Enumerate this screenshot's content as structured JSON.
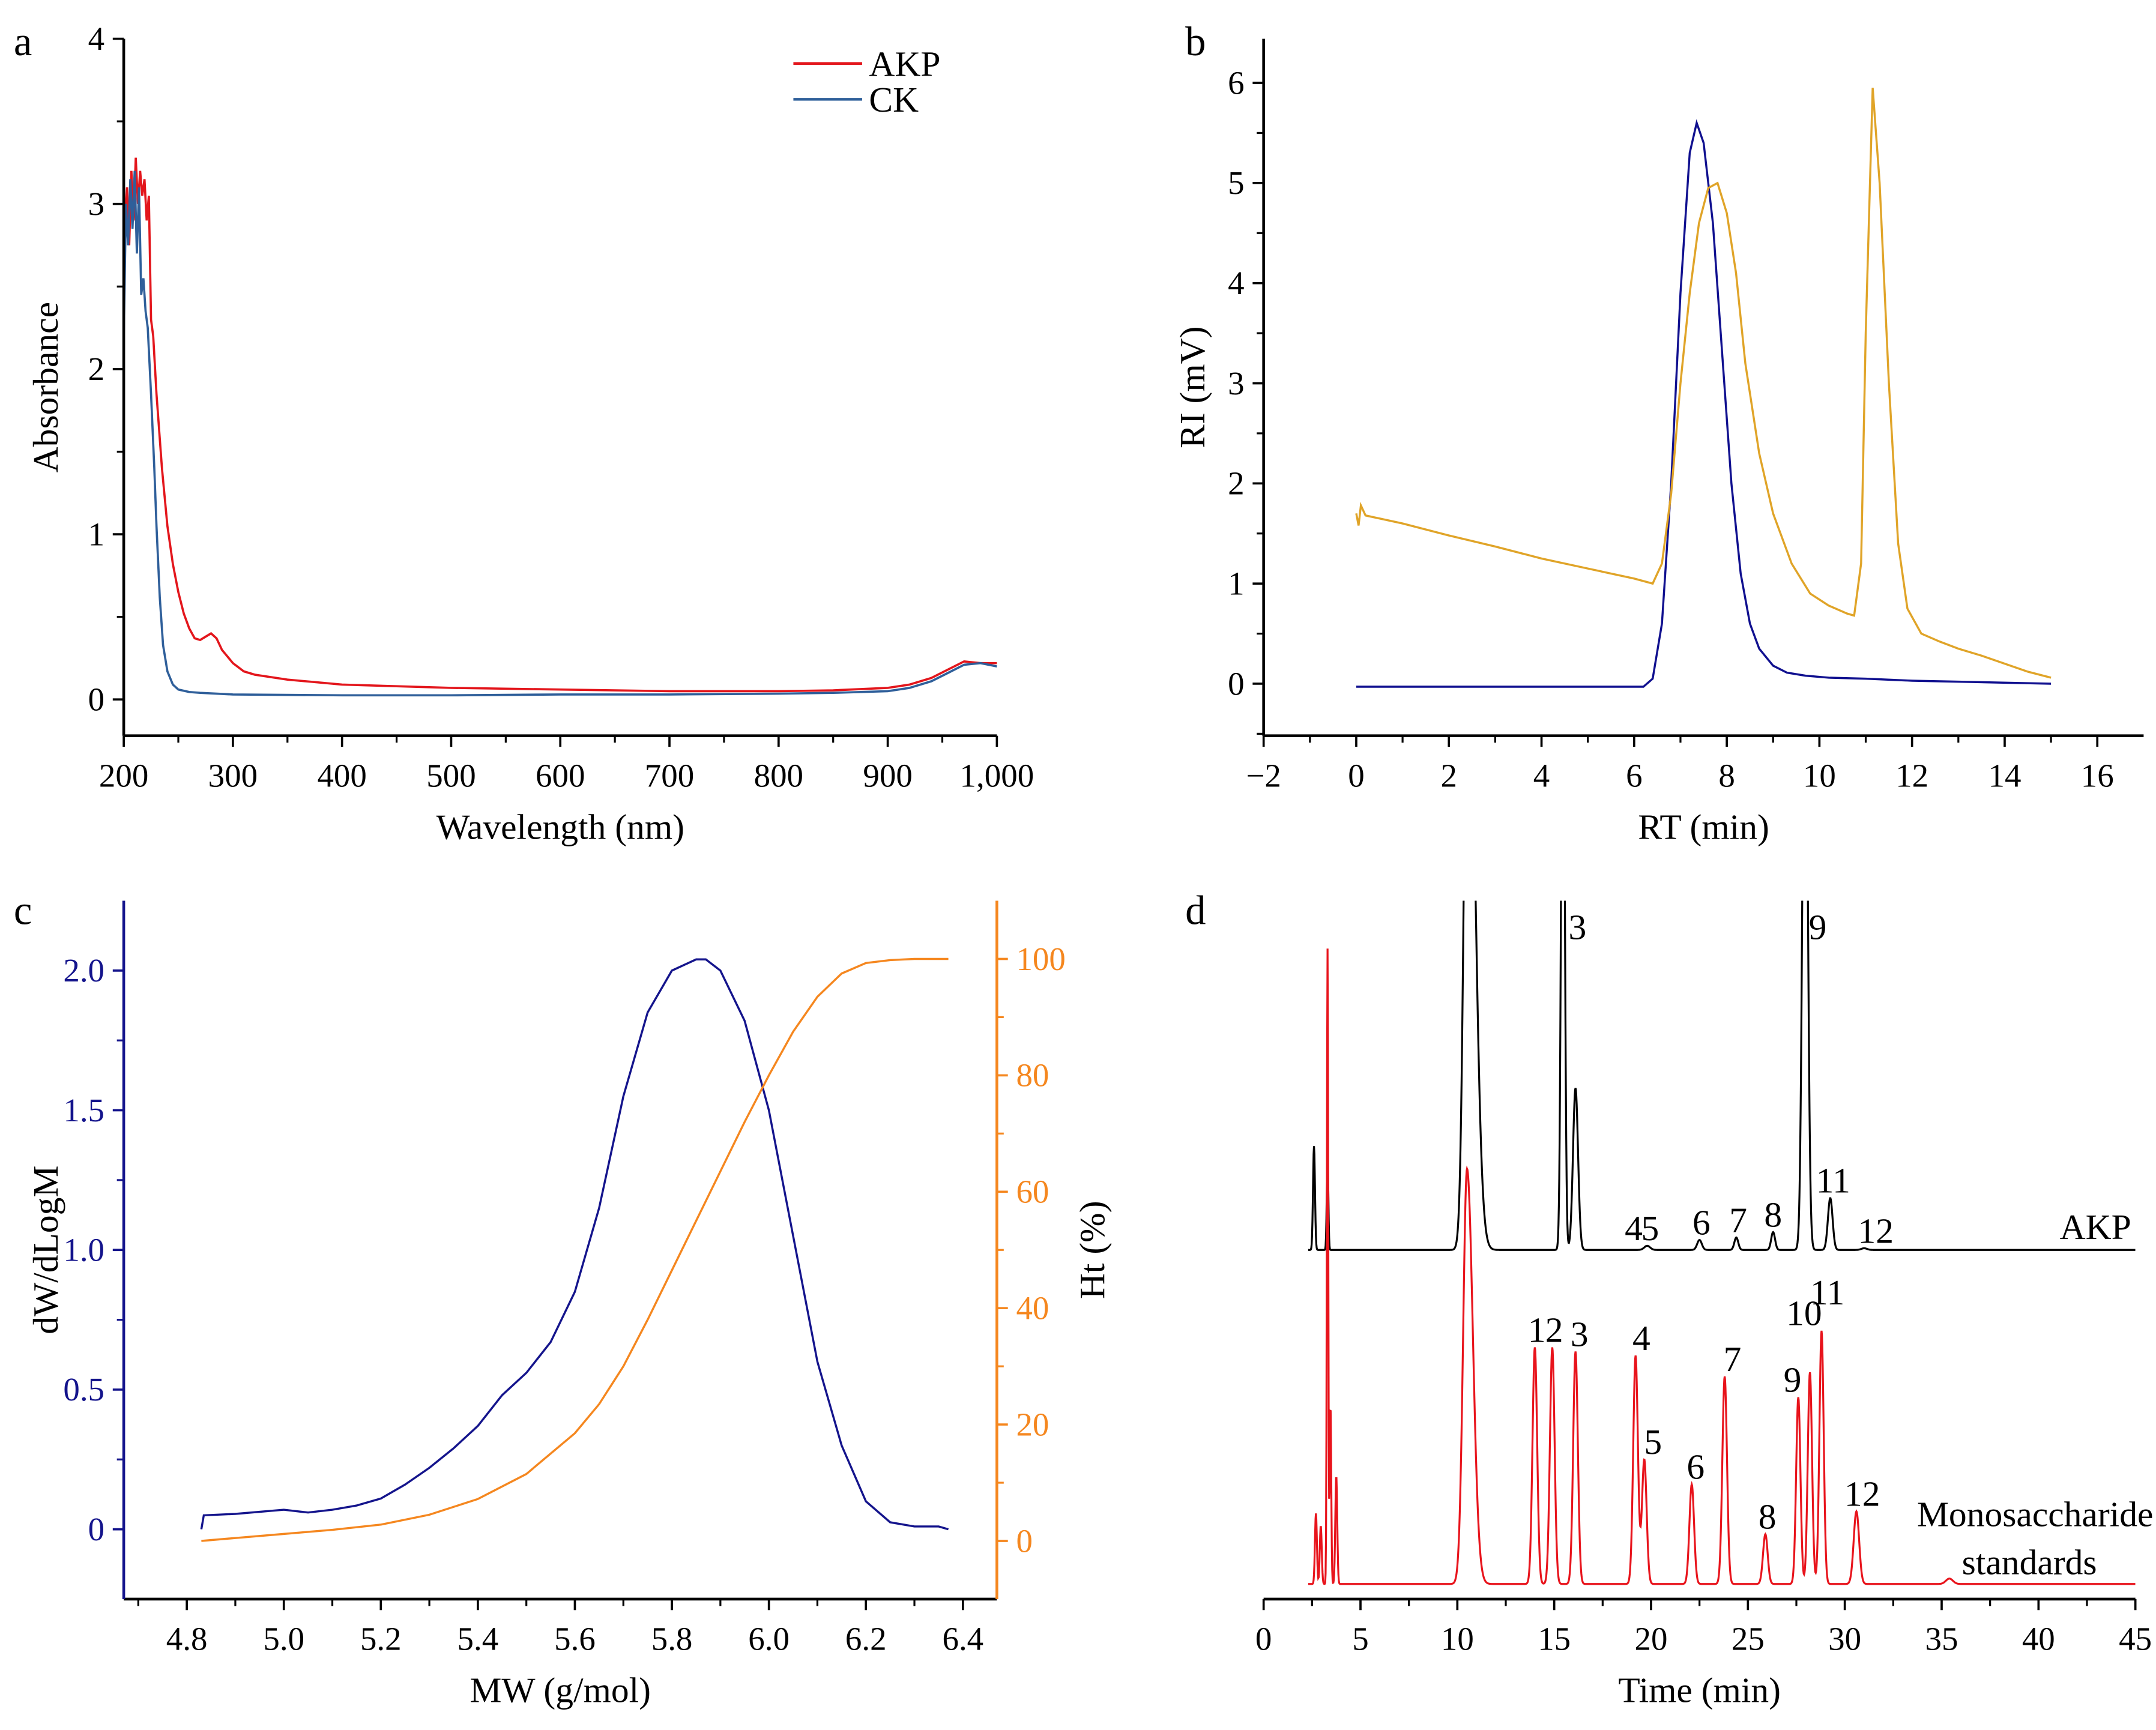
{
  "panels": [
    "a",
    "b",
    "c",
    "d"
  ],
  "chart_data": [
    {
      "panel": "a",
      "type": "line",
      "xlabel": "Wavelength (nm)",
      "ylabel": "Absorbance",
      "xlim": [
        200,
        1000
      ],
      "ylim": [
        -0.22,
        4
      ],
      "xticks": [
        200,
        300,
        400,
        500,
        600,
        700,
        800,
        900,
        1000
      ],
      "xtick_labels": [
        "200",
        "300",
        "400",
        "500",
        "600",
        "700",
        "800",
        "900",
        "1,000"
      ],
      "yticks": [
        0,
        1,
        2,
        3,
        4
      ],
      "ytick_labels": [
        "0",
        "1",
        "2",
        "3",
        "4"
      ],
      "legend": "top-right",
      "grid": false,
      "series": [
        {
          "name": "AKP",
          "color": "#e3161c",
          "x": [
            200,
            203,
            205,
            207,
            209,
            211,
            213,
            215,
            217,
            219,
            221,
            223,
            225,
            227,
            230,
            235,
            240,
            245,
            250,
            255,
            260,
            265,
            270,
            275,
            280,
            285,
            290,
            300,
            310,
            320,
            350,
            400,
            450,
            500,
            600,
            700,
            800,
            850,
            900,
            920,
            940,
            955,
            970,
            985,
            1000
          ],
          "y": [
            2.8,
            3.1,
            2.75,
            3.2,
            2.9,
            3.28,
            3.0,
            3.2,
            3.05,
            3.15,
            2.9,
            3.05,
            2.3,
            2.2,
            1.85,
            1.4,
            1.05,
            0.82,
            0.65,
            0.52,
            0.43,
            0.37,
            0.36,
            0.38,
            0.4,
            0.37,
            0.3,
            0.22,
            0.17,
            0.15,
            0.12,
            0.09,
            0.08,
            0.07,
            0.06,
            0.05,
            0.05,
            0.055,
            0.07,
            0.09,
            0.13,
            0.18,
            0.23,
            0.22,
            0.22
          ]
        },
        {
          "name": "CK",
          "color": "#2f5f9a",
          "x": [
            200,
            202,
            204,
            206,
            208,
            210,
            212,
            214,
            216,
            218,
            220,
            222,
            225,
            228,
            230,
            233,
            236,
            240,
            245,
            250,
            260,
            270,
            300,
            400,
            500,
            600,
            700,
            800,
            850,
            900,
            920,
            940,
            955,
            970,
            985,
            1000
          ],
          "y": [
            2.2,
            3.0,
            2.75,
            3.15,
            2.85,
            3.2,
            2.7,
            3.1,
            2.45,
            2.55,
            2.35,
            2.25,
            1.85,
            1.4,
            1.05,
            0.62,
            0.33,
            0.17,
            0.09,
            0.06,
            0.045,
            0.04,
            0.03,
            0.025,
            0.025,
            0.03,
            0.03,
            0.035,
            0.04,
            0.05,
            0.07,
            0.11,
            0.16,
            0.21,
            0.22,
            0.2
          ]
        }
      ]
    },
    {
      "panel": "b",
      "type": "line",
      "xlabel": "RT (min)",
      "ylabel": "RI (mV)",
      "xlim": [
        -2,
        17
      ],
      "ylim": [
        -0.52,
        6.44
      ],
      "xticks": [
        -2,
        0,
        2,
        4,
        6,
        8,
        10,
        12,
        14,
        16
      ],
      "xtick_labels": [
        "−2",
        "0",
        "2",
        "4",
        "6",
        "8",
        "10",
        "12",
        "14",
        "16"
      ],
      "yticks": [
        0,
        1,
        2,
        3,
        4,
        5,
        6
      ],
      "ytick_labels": [
        "0",
        "1",
        "2",
        "3",
        "4",
        "5",
        "6"
      ],
      "grid": false,
      "series": [
        {
          "color": "#10108f",
          "x": [
            0,
            3,
            6.2,
            6.4,
            6.6,
            6.8,
            7.0,
            7.2,
            7.35,
            7.5,
            7.7,
            7.9,
            8.1,
            8.3,
            8.5,
            8.7,
            9.0,
            9.3,
            9.7,
            10.2,
            11,
            12,
            13,
            15
          ],
          "y": [
            -0.03,
            -0.03,
            -0.03,
            0.05,
            0.6,
            2.0,
            3.9,
            5.3,
            5.6,
            5.4,
            4.6,
            3.3,
            2.0,
            1.1,
            0.6,
            0.35,
            0.18,
            0.11,
            0.08,
            0.06,
            0.05,
            0.03,
            0.02,
            0.0
          ]
        },
        {
          "color": "#e0a428",
          "x": [
            0,
            0.05,
            0.1,
            0.2,
            0.5,
            1,
            2,
            3,
            4,
            5,
            6,
            6.4,
            6.6,
            6.8,
            7.0,
            7.2,
            7.4,
            7.6,
            7.8,
            8.0,
            8.2,
            8.4,
            8.7,
            9.0,
            9.4,
            9.8,
            10.2,
            10.6,
            10.75,
            10.9,
            11.0,
            11.15,
            11.3,
            11.5,
            11.7,
            11.9,
            12.2,
            12.6,
            13,
            13.5,
            14,
            14.5,
            15
          ],
          "y": [
            1.7,
            1.58,
            1.78,
            1.68,
            1.65,
            1.6,
            1.48,
            1.37,
            1.25,
            1.15,
            1.05,
            1.0,
            1.2,
            1.9,
            3.0,
            3.9,
            4.6,
            4.95,
            5.0,
            4.7,
            4.1,
            3.2,
            2.3,
            1.7,
            1.2,
            0.9,
            0.78,
            0.7,
            0.68,
            1.2,
            3.5,
            5.95,
            5.0,
            3.0,
            1.4,
            0.75,
            0.5,
            0.42,
            0.35,
            0.28,
            0.2,
            0.12,
            0.06
          ]
        }
      ]
    },
    {
      "panel": "c",
      "type": "line",
      "xlabel": "MW (g/mol)",
      "ylabel": "dW/dLogM",
      "y2label": "Ht (%)",
      "xlim": [
        4.67,
        6.47
      ],
      "ylim": [
        -0.25,
        2.25
      ],
      "y2lim": [
        -10,
        110
      ],
      "xticks": [
        4.8,
        5.0,
        5.2,
        5.4,
        5.6,
        5.8,
        6.0,
        6.2,
        6.4
      ],
      "xtick_labels": [
        "4.8",
        "5.0",
        "5.2",
        "5.4",
        "5.6",
        "5.8",
        "6.0",
        "6.2",
        "6.4"
      ],
      "yticks": [
        0,
        0.5,
        1.0,
        1.5,
        2.0
      ],
      "ytick_labels": [
        "0",
        "0.5",
        "1.0",
        "1.5",
        "2.0"
      ],
      "y2ticks": [
        0,
        20,
        40,
        60,
        80,
        100
      ],
      "y2tick_labels": [
        "0",
        "20",
        "40",
        "60",
        "80",
        "100"
      ],
      "left_axis_color": "#14148c",
      "right_axis_color": "#f5871f",
      "grid": false,
      "series": [
        {
          "axis": "left",
          "color": "#14148c",
          "x": [
            4.83,
            4.835,
            4.9,
            5.0,
            5.05,
            5.1,
            5.15,
            5.2,
            5.25,
            5.3,
            5.35,
            5.4,
            5.45,
            5.5,
            5.55,
            5.6,
            5.65,
            5.7,
            5.75,
            5.8,
            5.85,
            5.87,
            5.9,
            5.95,
            6.0,
            6.05,
            6.1,
            6.15,
            6.2,
            6.25,
            6.3,
            6.35,
            6.37
          ],
          "y": [
            0,
            0.05,
            0.055,
            0.07,
            0.06,
            0.07,
            0.085,
            0.11,
            0.16,
            0.22,
            0.29,
            0.37,
            0.48,
            0.56,
            0.67,
            0.85,
            1.15,
            1.55,
            1.85,
            2.0,
            2.04,
            2.04,
            2.0,
            1.82,
            1.5,
            1.05,
            0.6,
            0.3,
            0.1,
            0.025,
            0.01,
            0.01,
            0.0
          ]
        },
        {
          "axis": "right",
          "color": "#f5871f",
          "x": [
            4.83,
            4.9,
            5.0,
            5.1,
            5.2,
            5.3,
            5.4,
            5.5,
            5.6,
            5.65,
            5.7,
            5.75,
            5.8,
            5.85,
            5.9,
            5.95,
            6.0,
            6.05,
            6.1,
            6.15,
            6.2,
            6.25,
            6.3,
            6.37
          ],
          "y": [
            0,
            0.5,
            1.2,
            1.9,
            2.8,
            4.5,
            7.2,
            11.5,
            18.5,
            23.5,
            30,
            38,
            46.5,
            55,
            63.5,
            72,
            80,
            87.5,
            93.5,
            97.5,
            99.3,
            99.8,
            100,
            100
          ]
        }
      ]
    },
    {
      "panel": "d",
      "type": "line",
      "xlabel": "Time (min)",
      "xlim": [
        0,
        45
      ],
      "xticks": [
        0,
        5,
        10,
        15,
        20,
        25,
        30,
        35,
        40,
        45
      ],
      "xtick_labels": [
        "0",
        "5",
        "10",
        "15",
        "20",
        "25",
        "30",
        "35",
        "40",
        "45"
      ],
      "grid": false,
      "traces": [
        {
          "name": "AKP",
          "color": "#000000",
          "peaks": [
            {
              "rt": 2.6,
              "height": 25,
              "sigma": 0.05
            },
            {
              "rt": 3.3,
              "height": 23,
              "sigma": 0.04
            },
            {
              "rt": 10.55,
              "height": 160,
              "sigma": 0.2,
              "tail": 0.35
            },
            {
              "rt": 15.45,
              "height": 160,
              "sigma": 0.09
            },
            {
              "rt": 16.1,
              "height": 39,
              "sigma": 0.13
            },
            {
              "rt": 19.8,
              "height": 1,
              "sigma": 0.15
            },
            {
              "rt": 22.5,
              "height": 2.4,
              "sigma": 0.12
            },
            {
              "rt": 24.4,
              "height": 3,
              "sigma": 0.1
            },
            {
              "rt": 26.3,
              "height": 4.3,
              "sigma": 0.1
            },
            {
              "rt": 27.95,
              "height": 160,
              "sigma": 0.13
            },
            {
              "rt": 29.25,
              "height": 12.5,
              "sigma": 0.12
            },
            {
              "rt": 31.0,
              "height": 0.4,
              "sigma": 0.15
            }
          ],
          "labels": [
            {
              "text": "3",
              "rt": 16.2,
              "top": true
            },
            {
              "text": "4",
              "rt": 19.1,
              "height": 1
            },
            {
              "text": "5",
              "rt": 19.95,
              "height": 1
            },
            {
              "text": "6",
              "rt": 22.6,
              "height": 2.4
            },
            {
              "text": "7",
              "rt": 24.5,
              "height": 3
            },
            {
              "text": "8",
              "rt": 26.3,
              "height": 4.3
            },
            {
              "text": "9",
              "rt": 28.6,
              "top": true
            },
            {
              "text": "11",
              "rt": 29.4,
              "height": 12.5
            },
            {
              "text": "12",
              "rt": 31.6,
              "height": 0.4
            }
          ],
          "name_label": "AKP"
        },
        {
          "name": "Monosaccharide standards",
          "color": "#e8141c",
          "peaks": [
            {
              "rt": 2.7,
              "height": 17,
              "sigma": 0.05
            },
            {
              "rt": 2.95,
              "height": 14,
              "sigma": 0.05
            },
            {
              "rt": 3.3,
              "height": 153,
              "sigma": 0.035
            },
            {
              "rt": 3.45,
              "height": 43,
              "sigma": 0.04
            },
            {
              "rt": 3.75,
              "height": 26,
              "sigma": 0.05
            },
            {
              "rt": 10.5,
              "height": 100,
              "sigma": 0.2,
              "tail": 0.3
            },
            {
              "rt": 14.0,
              "height": 57,
              "sigma": 0.12
            },
            {
              "rt": 14.9,
              "height": 57,
              "sigma": 0.12
            },
            {
              "rt": 16.1,
              "height": 56,
              "sigma": 0.12
            },
            {
              "rt": 19.2,
              "height": 55,
              "sigma": 0.12
            },
            {
              "rt": 19.65,
              "height": 30,
              "sigma": 0.12
            },
            {
              "rt": 22.1,
              "height": 24,
              "sigma": 0.12
            },
            {
              "rt": 23.8,
              "height": 50,
              "sigma": 0.12
            },
            {
              "rt": 25.9,
              "height": 12,
              "sigma": 0.12
            },
            {
              "rt": 27.6,
              "height": 45,
              "sigma": 0.11
            },
            {
              "rt": 28.2,
              "height": 51,
              "sigma": 0.11
            },
            {
              "rt": 28.8,
              "height": 61,
              "sigma": 0.11
            },
            {
              "rt": 30.6,
              "height": 17.5,
              "sigma": 0.14
            },
            {
              "rt": 35.4,
              "height": 1.3,
              "sigma": 0.18
            }
          ],
          "labels": [
            {
              "text": "1",
              "rt": 14.1,
              "height": 57
            },
            {
              "text": "2",
              "rt": 15.0,
              "height": 57
            },
            {
              "text": "3",
              "rt": 16.3,
              "height": 56
            },
            {
              "text": "4",
              "rt": 19.5,
              "height": 55
            },
            {
              "text": "5",
              "rt": 20.1,
              "height": 30
            },
            {
              "text": "6",
              "rt": 22.3,
              "height": 24
            },
            {
              "text": "7",
              "rt": 24.2,
              "height": 50
            },
            {
              "text": "8",
              "rt": 26.0,
              "height": 12
            },
            {
              "text": "9",
              "rt": 27.3,
              "height": 45
            },
            {
              "text": "10",
              "rt": 27.9,
              "height": 61
            },
            {
              "text": "11",
              "rt": 29.1,
              "height": 66
            },
            {
              "text": "12",
              "rt": 30.9,
              "height": 17.5
            }
          ],
          "name_label_lines": [
            "Monosaccharide",
            "standards"
          ]
        }
      ]
    }
  ]
}
